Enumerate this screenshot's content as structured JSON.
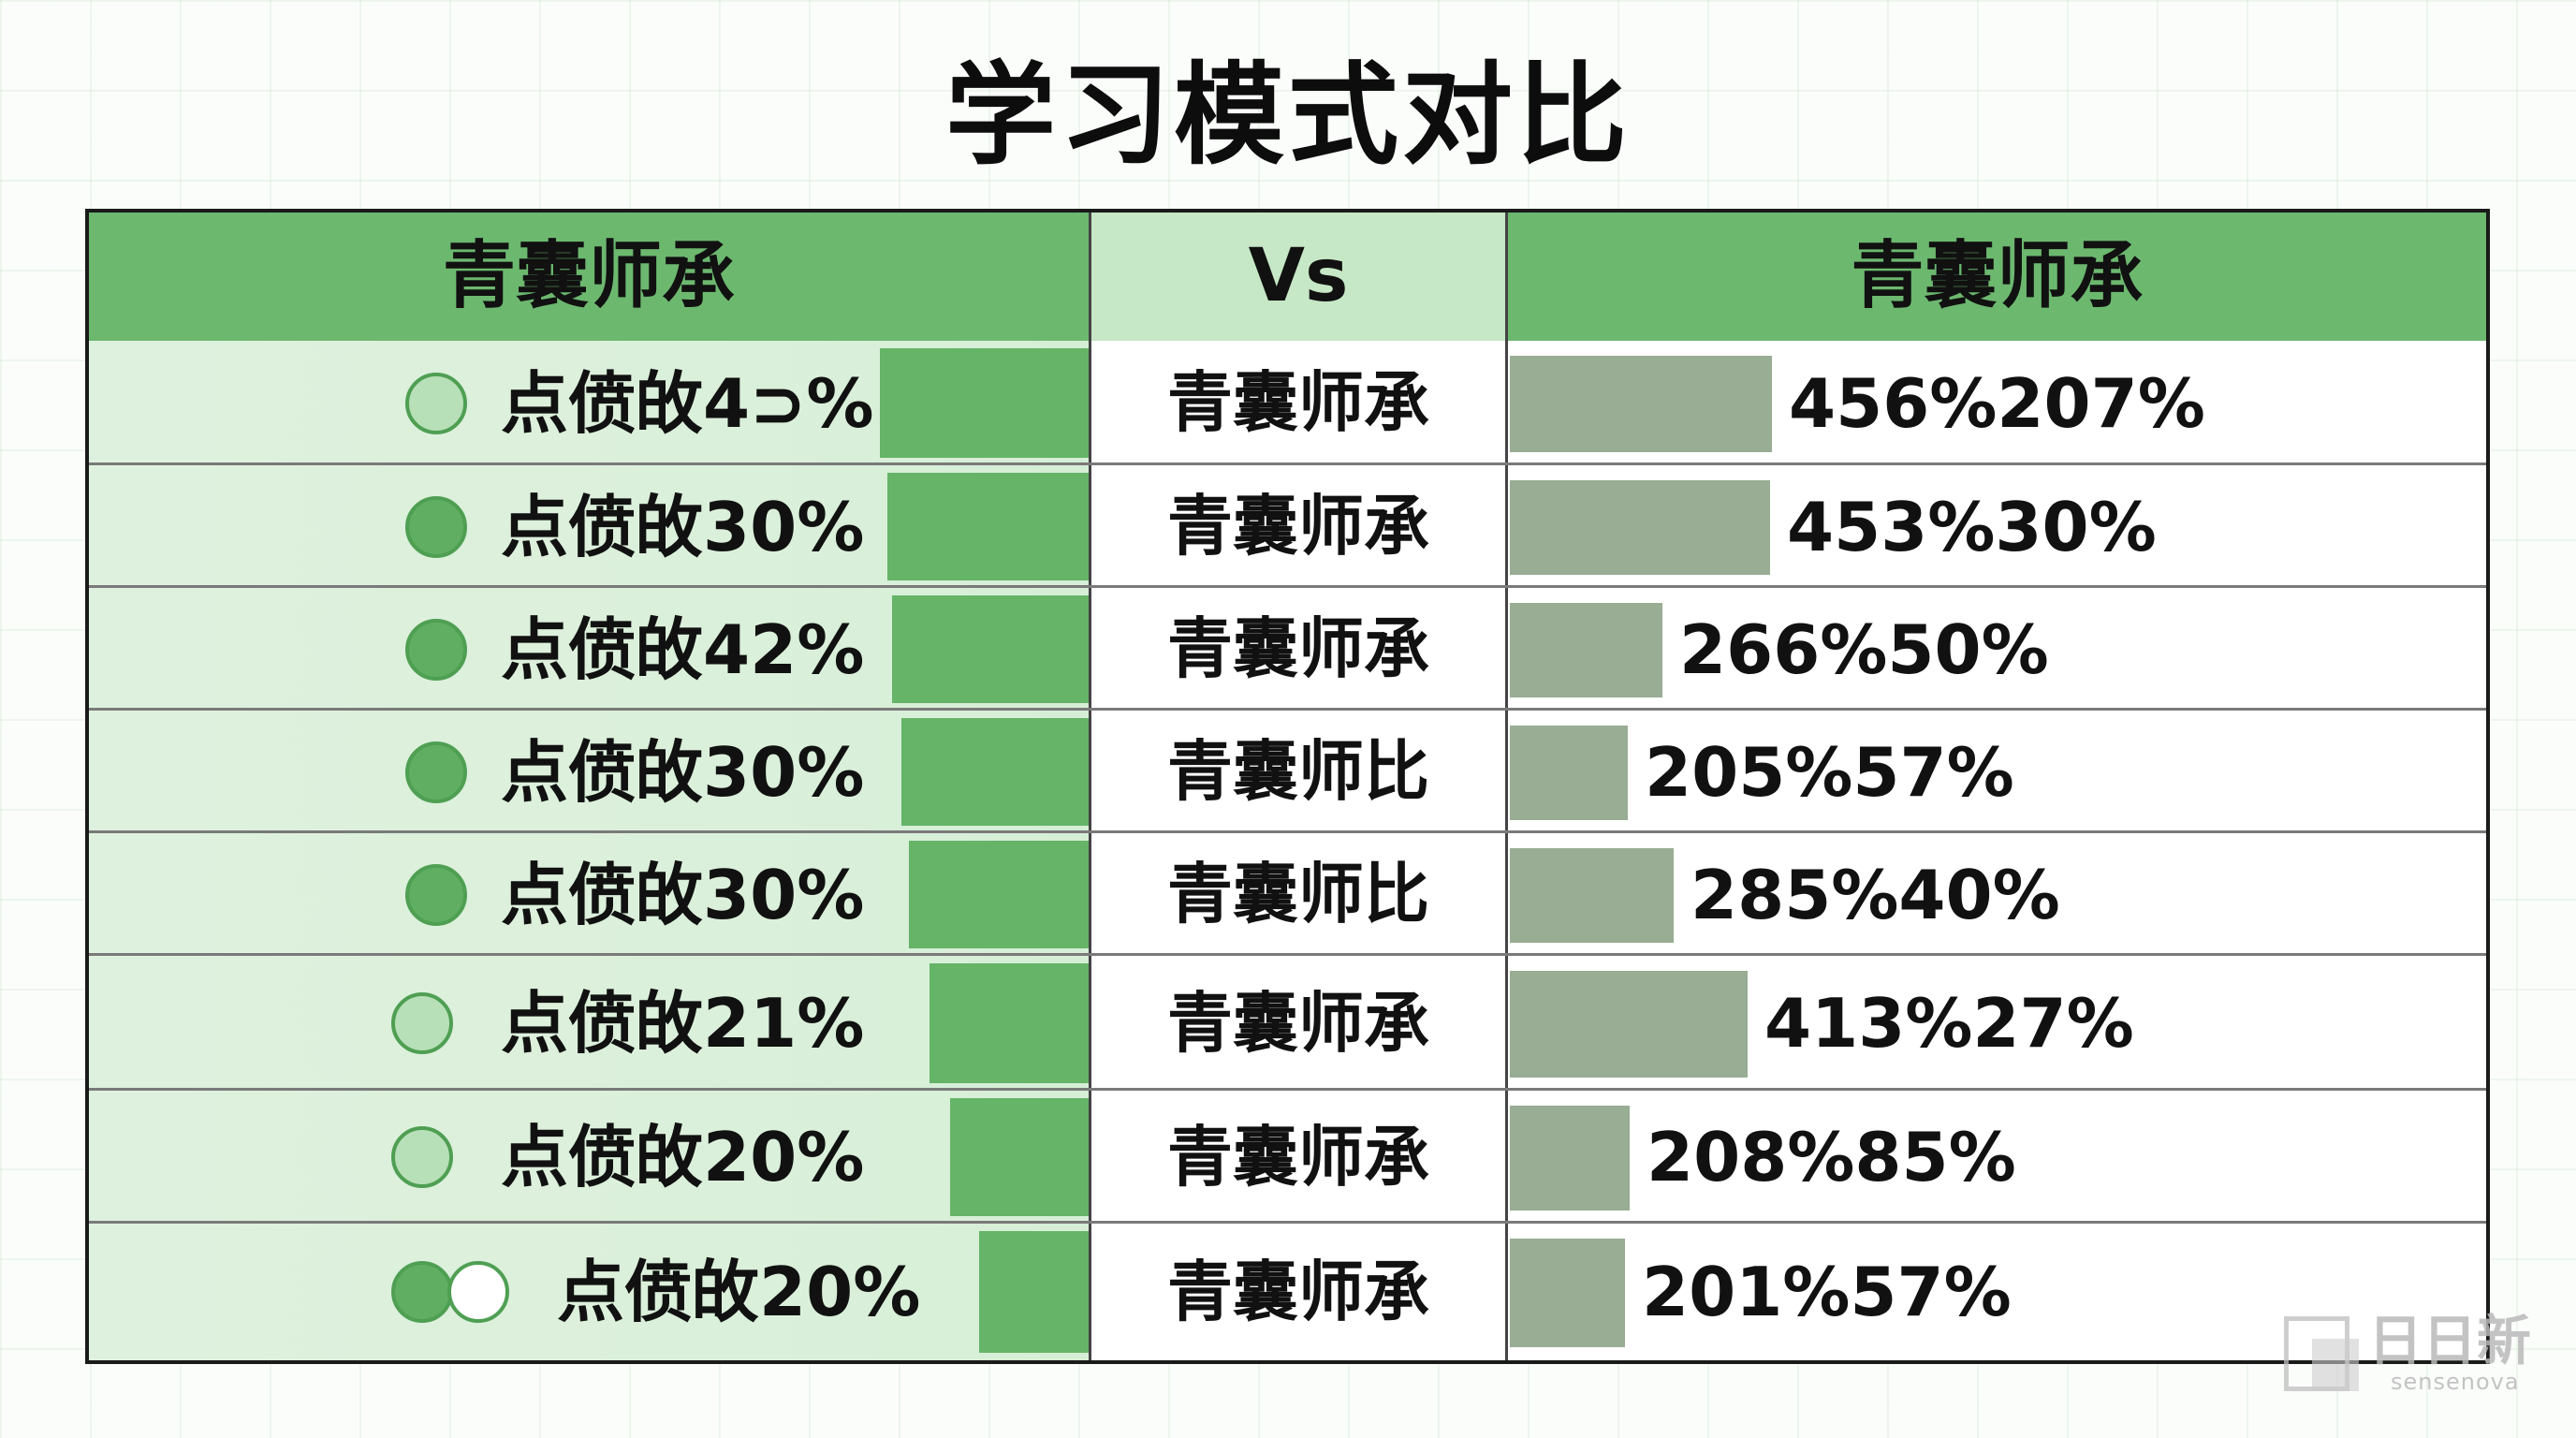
{
  "title": "学习模式对比",
  "headers": {
    "left": "青囊师承",
    "middle": "Vs",
    "right": "青囊师承"
  },
  "colors": {
    "header_green": "#6cb86f",
    "middle_header": "#c6e8c6",
    "left_cell_bg": "#dcf0dc",
    "left_bar": "#65b468",
    "right_bar": "#98ad93",
    "dot_dark": "#5fae62",
    "dot_light": "#b8e0b8"
  },
  "chart_data": {
    "type": "table",
    "title": "学习模式对比",
    "columns": [
      "青囊师承",
      "Vs",
      "青囊师承"
    ],
    "rows": [
      {
        "icon": "dot-light",
        "left_label": "点偾敀4⊃%",
        "left_value": 40,
        "middle": "青囊师承",
        "right_label": "456%207%",
        "right_value": 456
      },
      {
        "icon": "dot-dark",
        "left_label": "点偾敀30%",
        "left_value": 30,
        "middle": "青囊师承",
        "right_label": "453%30%",
        "right_value": 453
      },
      {
        "icon": "dot-dark",
        "left_label": "点偾敀42%",
        "left_value": 42,
        "middle": "青囊师承",
        "right_label": "266%50%",
        "right_value": 266
      },
      {
        "icon": "dot-dark",
        "left_label": "点偾敀30%",
        "left_value": 30,
        "middle": "青囊师比",
        "right_label": "205%57%",
        "right_value": 205
      },
      {
        "icon": "dot-dark",
        "left_label": "点偾敀30%",
        "left_value": 30,
        "middle": "青囊师比",
        "right_label": "285%40%",
        "right_value": 285
      },
      {
        "icon": "dot-light",
        "left_label": "点偾敀21%",
        "left_value": 21,
        "middle": "青囊师承",
        "right_label": "413%27%",
        "right_value": 413
      },
      {
        "icon": "dot-light",
        "left_label": "点偾敀20%",
        "left_value": 20,
        "middle": "青囊师承",
        "right_label": "208%85%",
        "right_value": 208
      },
      {
        "icon": "dot-pair",
        "left_label": "点偾敀20%",
        "left_value": 20,
        "middle": "青囊师承",
        "right_label": "201%57%",
        "right_value": 201
      }
    ]
  },
  "watermark": {
    "text": "日日新",
    "sub": "sensenova"
  }
}
